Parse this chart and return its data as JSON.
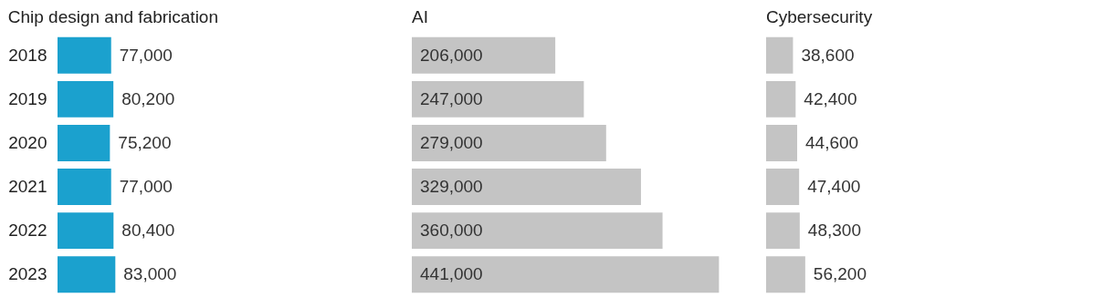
{
  "chart_data": [
    {
      "type": "bar",
      "orientation": "horizontal",
      "title": "Chip design and fabrication",
      "categories": [
        "2018",
        "2019",
        "2020",
        "2021",
        "2022",
        "2023"
      ],
      "values": [
        77000,
        80200,
        75200,
        77000,
        80400,
        83000
      ],
      "value_labels": [
        "77,000",
        "80,200",
        "75,200",
        "77,000",
        "80,400",
        "83,000"
      ],
      "color": "#1ba1ce",
      "tick_labels": "y"
    },
    {
      "type": "bar",
      "orientation": "horizontal",
      "title": "AI",
      "categories": [
        "2018",
        "2019",
        "2020",
        "2021",
        "2022",
        "2023"
      ],
      "values": [
        206000,
        247000,
        279000,
        329000,
        360000,
        441000
      ],
      "value_labels": [
        "206,000",
        "247,000",
        "279,000",
        "329,000",
        "360,000",
        "441,000"
      ],
      "color": "#c4c4c4",
      "tick_labels": false
    },
    {
      "type": "bar",
      "orientation": "horizontal",
      "title": "Cybersecurity",
      "categories": [
        "2018",
        "2019",
        "2020",
        "2021",
        "2022",
        "2023"
      ],
      "values": [
        38600,
        42400,
        44600,
        47400,
        48300,
        56200
      ],
      "value_labels": [
        "38,600",
        "42,400",
        "44,600",
        "47,400",
        "48,300",
        "56,200"
      ],
      "color": "#c4c4c4",
      "tick_labels": false
    }
  ]
}
